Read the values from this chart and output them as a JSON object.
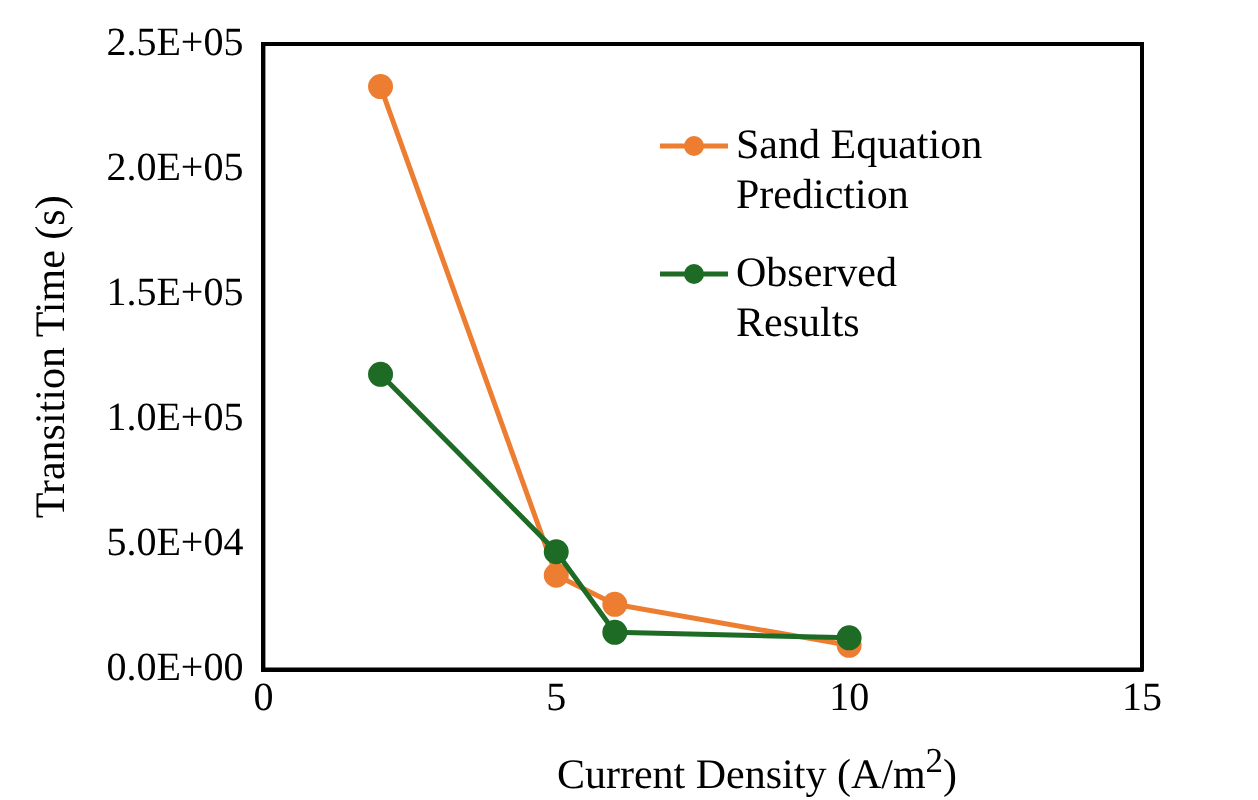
{
  "chart_data": {
    "type": "line",
    "xlabel": "Current Density (A/m$^{2}$)",
    "ylabel": "Transition Time (s)",
    "x": [
      2,
      5,
      6,
      10
    ],
    "series": [
      {
        "name": "Sand Equation Prediction",
        "color": "#ed7d31",
        "values": [
          233000,
          37700,
          26100,
          9700
        ]
      },
      {
        "name": "Observed Results",
        "color": "#1e6b26",
        "values": [
          118000,
          47100,
          14900,
          12700
        ]
      }
    ],
    "xlim": [
      0,
      15
    ],
    "xticks": [
      0,
      5,
      10,
      15
    ],
    "ylim": [
      0,
      250000
    ],
    "yticks": [
      {
        "value": 0,
        "label": "0.0E+00"
      },
      {
        "value": 50000,
        "label": "5.0E+04"
      },
      {
        "value": 100000,
        "label": "1.0E+05"
      },
      {
        "value": 150000,
        "label": "1.5E+05"
      },
      {
        "value": 200000,
        "label": "2.0E+05"
      },
      {
        "value": 250000,
        "label": "2.5E+05"
      }
    ],
    "grid": false,
    "legend": "top right",
    "marker": "circle",
    "line_style": "solid"
  }
}
